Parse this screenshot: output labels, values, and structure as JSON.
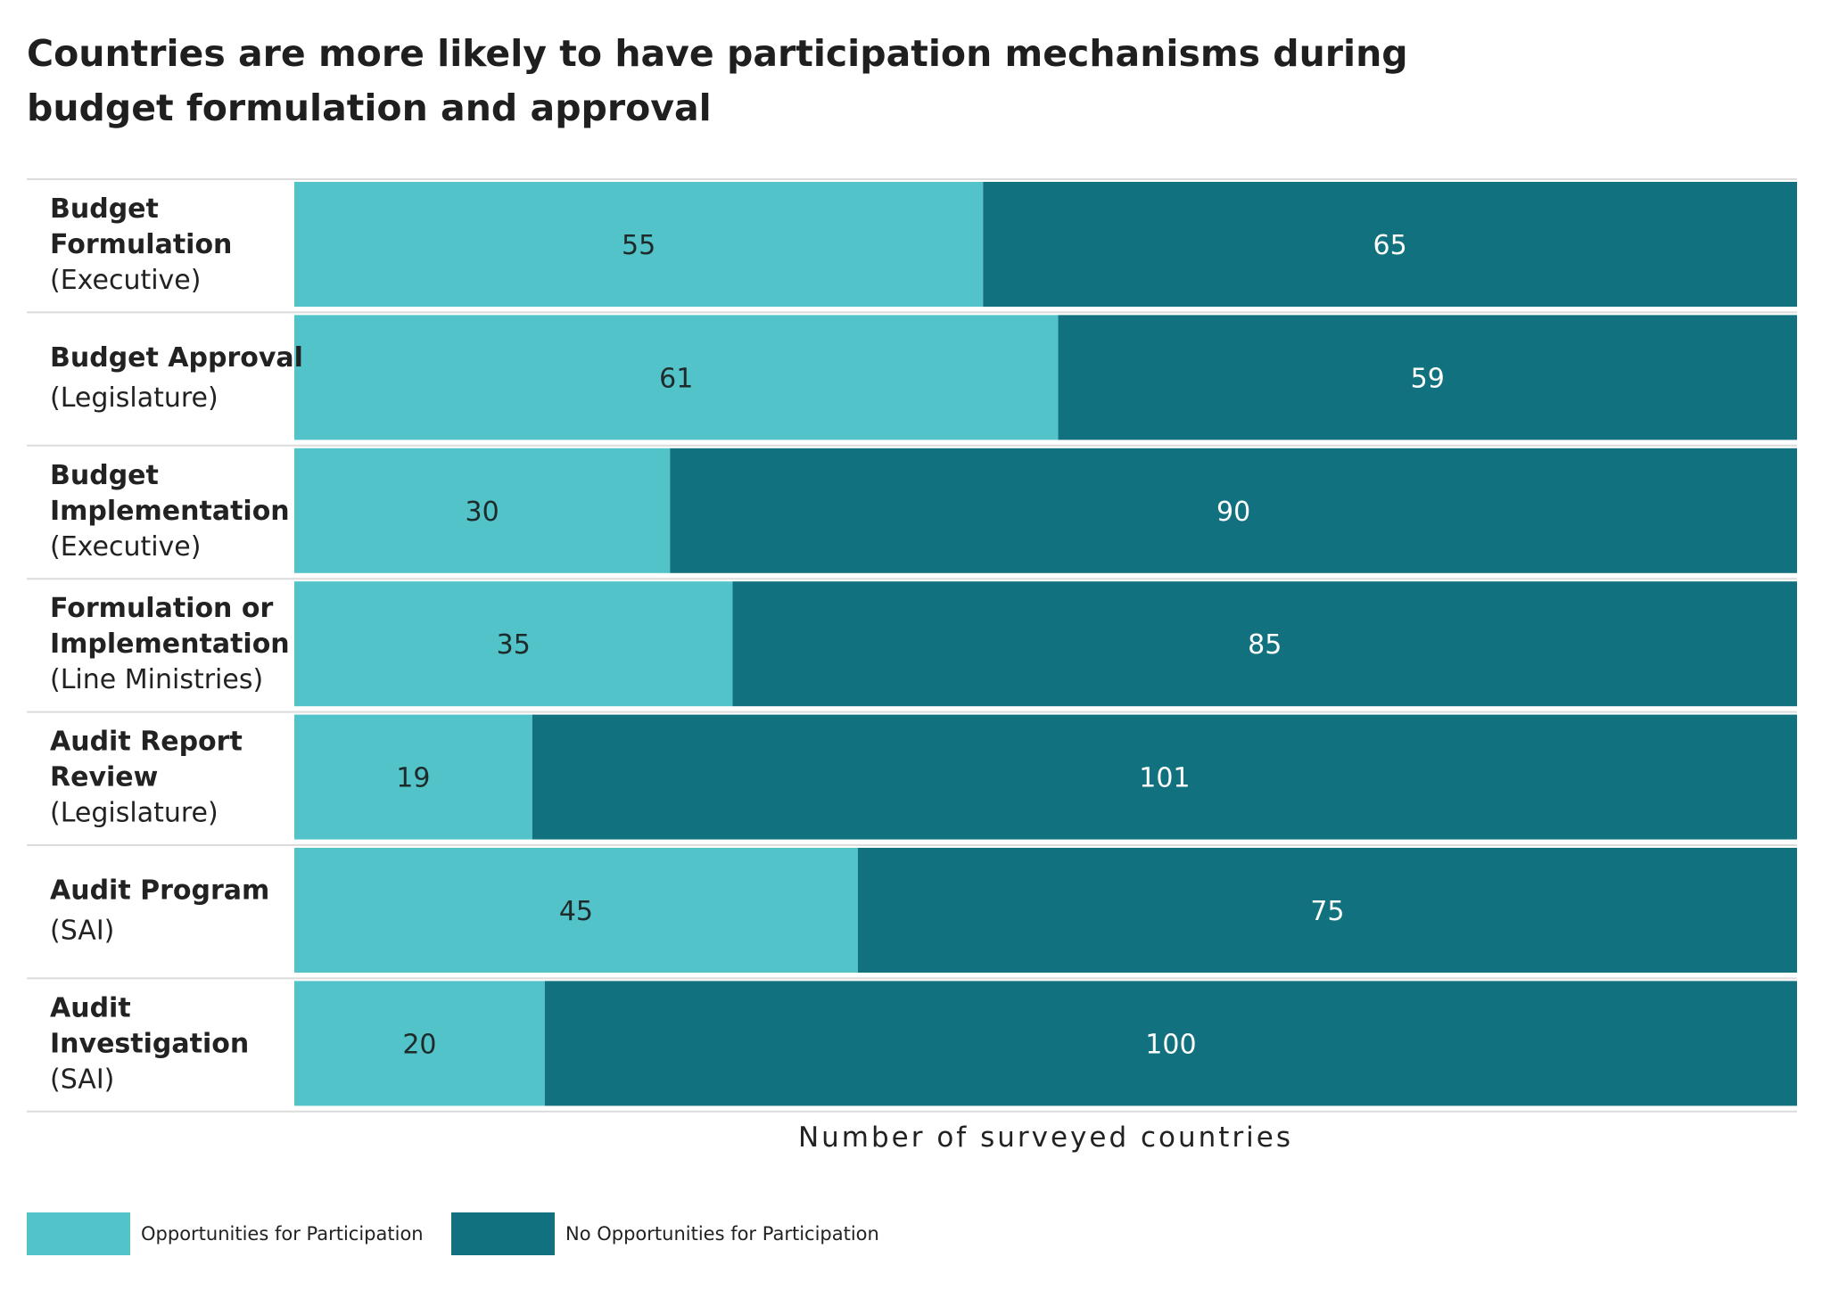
{
  "chart_data": {
    "type": "bar",
    "orientation": "horizontal",
    "stacked": true,
    "title": "Countries are more likely to have participation mechanisms during budget formulation and approval",
    "xlabel": "Number of surveyed countries",
    "xlim": [
      0,
      120
    ],
    "categories": [
      {
        "main": "Budget Formulation",
        "main_lines": [
          "Budget",
          "Formulation"
        ],
        "sub": "(Executive)"
      },
      {
        "main": "Budget Approval",
        "main_lines": [
          "Budget Approval"
        ],
        "sub": "(Legislature)"
      },
      {
        "main": "Budget Implementation",
        "main_lines": [
          "Budget",
          "Implementation"
        ],
        "sub": "(Executive)"
      },
      {
        "main": "Formulation or Implementation",
        "main_lines": [
          "Formulation or",
          "Implementation"
        ],
        "sub": "(Line Ministries)"
      },
      {
        "main": "Audit Report Review",
        "main_lines": [
          "Audit Report",
          "Review"
        ],
        "sub": "(Legislature)"
      },
      {
        "main": "Audit Program",
        "main_lines": [
          "Audit Program"
        ],
        "sub": "(SAI)"
      },
      {
        "main": "Audit Investigation",
        "main_lines": [
          "Audit",
          "Investigation"
        ],
        "sub": "(SAI)"
      }
    ],
    "series": [
      {
        "name": "Opportunities for Participation",
        "color": "#52c3c9",
        "label_color": "#1f2a2b",
        "values": [
          55,
          61,
          30,
          35,
          19,
          45,
          20
        ]
      },
      {
        "name": "No Opportunities for Participation",
        "color": "#12717e",
        "label_color": "#ffffff",
        "values": [
          65,
          59,
          90,
          85,
          101,
          75,
          100
        ]
      }
    ],
    "legend_position": "bottom-left",
    "grid": false
  }
}
